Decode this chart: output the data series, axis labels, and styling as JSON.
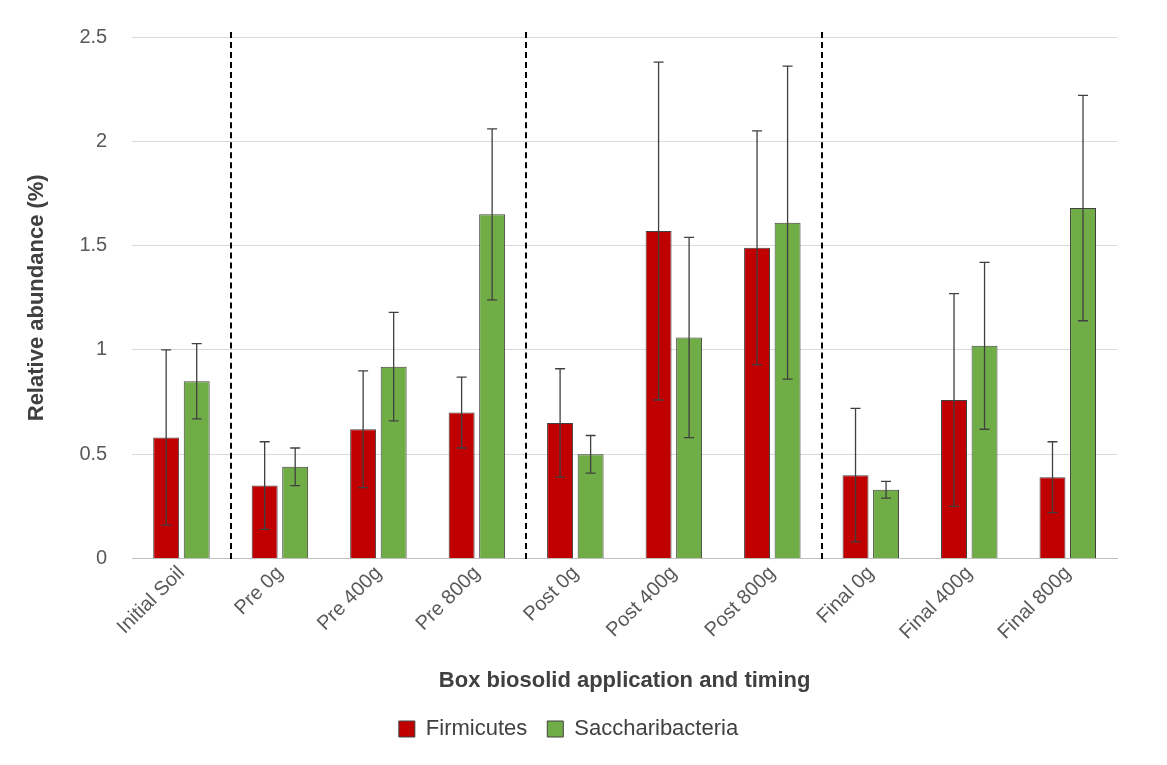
{
  "chart_data": {
    "type": "bar",
    "xlabel": "Box biosolid application and timing",
    "ylabel": "Relative abundance (%)",
    "categories": [
      "Initial Soil",
      "Pre 0g",
      "Pre 400g",
      "Pre 800g",
      "Post 0g",
      "Post 400g",
      "Post 800g",
      "Final 0g",
      "Final 400g",
      "Final 800g"
    ],
    "series": [
      {
        "name": "Firmicutes",
        "color": "#c00000",
        "values": [
          0.58,
          0.35,
          0.62,
          0.7,
          0.65,
          1.57,
          1.49,
          0.4,
          0.76,
          0.39
        ],
        "errors": [
          0.42,
          0.21,
          0.28,
          0.17,
          0.26,
          0.81,
          0.56,
          0.32,
          0.51,
          0.17
        ]
      },
      {
        "name": "Saccharibacteria",
        "color": "#70ad47",
        "values": [
          0.85,
          0.44,
          0.92,
          1.65,
          0.5,
          1.06,
          1.61,
          0.33,
          1.02,
          1.68
        ],
        "errors": [
          0.18,
          0.09,
          0.26,
          0.41,
          0.09,
          0.48,
          0.75,
          0.04,
          0.4,
          0.54
        ]
      }
    ],
    "ylim": [
      0,
      2.5
    ],
    "yticks": [
      0,
      0.5,
      1,
      1.5,
      2,
      2.5
    ],
    "grid": "y",
    "legend": "bottom"
  }
}
